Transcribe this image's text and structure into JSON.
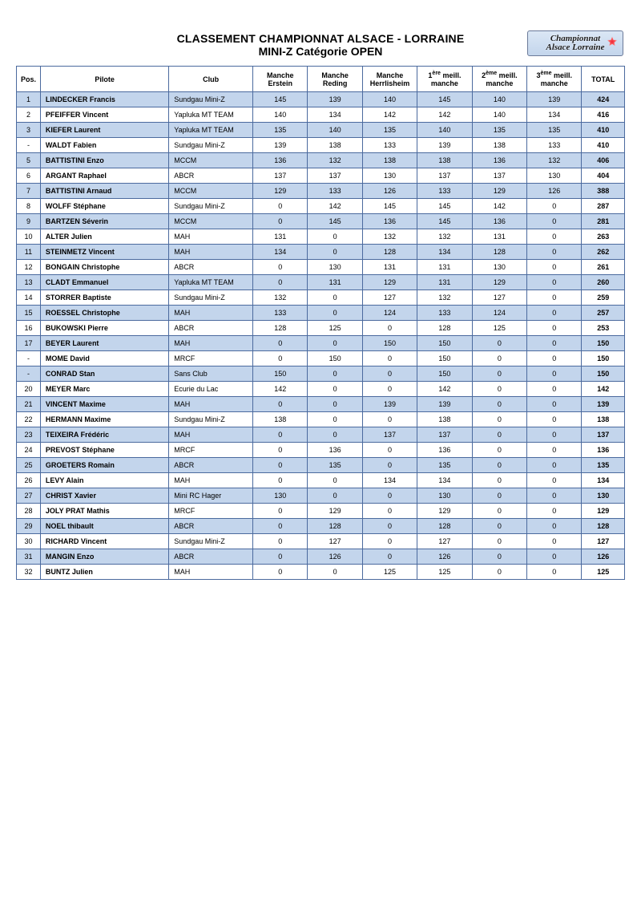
{
  "header": {
    "title_line1": "CLASSEMENT CHAMPIONNAT ALSACE - LORRAINE",
    "title_line2": "MINI-Z Catégorie OPEN",
    "logo_line1": "Championnat",
    "logo_line2": "Alsace Lorraine"
  },
  "style": {
    "border_color": "#4b6a9e",
    "row_odd_bg": "#c3d5ec",
    "row_even_bg": "#ffffff",
    "header_bg": "#ffffff",
    "font_family": "Arial",
    "base_font_size_pt": 7,
    "title_font_size_pt": 11,
    "logo_bg_gradient": [
      "#dbe7f5",
      "#c3d5ec"
    ]
  },
  "columns": [
    {
      "key": "pos",
      "label": "Pos.",
      "label_html": "Pos."
    },
    {
      "key": "pilote",
      "label": "Pilote",
      "label_html": "Pilote"
    },
    {
      "key": "club",
      "label": "Club",
      "label_html": "Club"
    },
    {
      "key": "m_erstein",
      "label": "Manche Erstein",
      "label_html": "Manche<br>Erstein"
    },
    {
      "key": "m_reding",
      "label": "Manche Reding",
      "label_html": "Manche<br>Reding"
    },
    {
      "key": "m_herrlisheim",
      "label": "Manche Herrlisheim",
      "label_html": "Manche<br>Herrlisheim"
    },
    {
      "key": "meil1",
      "label": "1ère meill. manche",
      "label_html": "1<sup>ère</sup> meill.<br>manche"
    },
    {
      "key": "meil2",
      "label": "2ème meill. manche",
      "label_html": "2<sup>ème</sup> meill.<br>manche"
    },
    {
      "key": "meil3",
      "label": "3ème meill. manche",
      "label_html": "3<sup>ème</sup> meill.<br>manche"
    },
    {
      "key": "total",
      "label": "TOTAL",
      "label_html": "TOTAL"
    }
  ],
  "rows": [
    {
      "pos": "1",
      "pilote": "LINDECKER Francis",
      "club": "Sundgau Mini-Z",
      "m_erstein": "145",
      "m_reding": "139",
      "m_herrlisheim": "140",
      "meil1": "145",
      "meil2": "140",
      "meil3": "139",
      "total": "424"
    },
    {
      "pos": "2",
      "pilote": "PFEIFFER Vincent",
      "club": "Yapluka MT TEAM",
      "m_erstein": "140",
      "m_reding": "134",
      "m_herrlisheim": "142",
      "meil1": "142",
      "meil2": "140",
      "meil3": "134",
      "total": "416"
    },
    {
      "pos": "3",
      "pilote": "KIEFER Laurent",
      "club": "Yapluka MT TEAM",
      "m_erstein": "135",
      "m_reding": "140",
      "m_herrlisheim": "135",
      "meil1": "140",
      "meil2": "135",
      "meil3": "135",
      "total": "410"
    },
    {
      "pos": "-",
      "pilote": "WALDT Fabien",
      "club": "Sundgau Mini-Z",
      "m_erstein": "139",
      "m_reding": "138",
      "m_herrlisheim": "133",
      "meil1": "139",
      "meil2": "138",
      "meil3": "133",
      "total": "410"
    },
    {
      "pos": "5",
      "pilote": "BATTISTINI Enzo",
      "club": "MCCM",
      "m_erstein": "136",
      "m_reding": "132",
      "m_herrlisheim": "138",
      "meil1": "138",
      "meil2": "136",
      "meil3": "132",
      "total": "406"
    },
    {
      "pos": "6",
      "pilote": "ARGANT Raphael",
      "club": "ABCR",
      "m_erstein": "137",
      "m_reding": "137",
      "m_herrlisheim": "130",
      "meil1": "137",
      "meil2": "137",
      "meil3": "130",
      "total": "404"
    },
    {
      "pos": "7",
      "pilote": "BATTISTINI Arnaud",
      "club": "MCCM",
      "m_erstein": "129",
      "m_reding": "133",
      "m_herrlisheim": "126",
      "meil1": "133",
      "meil2": "129",
      "meil3": "126",
      "total": "388"
    },
    {
      "pos": "8",
      "pilote": "WOLFF Stéphane",
      "club": "Sundgau Mini-Z",
      "m_erstein": "0",
      "m_reding": "142",
      "m_herrlisheim": "145",
      "meil1": "145",
      "meil2": "142",
      "meil3": "0",
      "total": "287"
    },
    {
      "pos": "9",
      "pilote": "BARTZEN Séverin",
      "club": "MCCM",
      "m_erstein": "0",
      "m_reding": "145",
      "m_herrlisheim": "136",
      "meil1": "145",
      "meil2": "136",
      "meil3": "0",
      "total": "281"
    },
    {
      "pos": "10",
      "pilote": "ALTER Julien",
      "club": "MAH",
      "m_erstein": "131",
      "m_reding": "0",
      "m_herrlisheim": "132",
      "meil1": "132",
      "meil2": "131",
      "meil3": "0",
      "total": "263"
    },
    {
      "pos": "11",
      "pilote": "STEINMETZ Vincent",
      "club": "MAH",
      "m_erstein": "134",
      "m_reding": "0",
      "m_herrlisheim": "128",
      "meil1": "134",
      "meil2": "128",
      "meil3": "0",
      "total": "262"
    },
    {
      "pos": "12",
      "pilote": "BONGAIN Christophe",
      "club": "ABCR",
      "m_erstein": "0",
      "m_reding": "130",
      "m_herrlisheim": "131",
      "meil1": "131",
      "meil2": "130",
      "meil3": "0",
      "total": "261"
    },
    {
      "pos": "13",
      "pilote": "CLADT Emmanuel",
      "club": "Yapluka MT TEAM",
      "m_erstein": "0",
      "m_reding": "131",
      "m_herrlisheim": "129",
      "meil1": "131",
      "meil2": "129",
      "meil3": "0",
      "total": "260"
    },
    {
      "pos": "14",
      "pilote": "STORRER Baptiste",
      "club": "Sundgau Mini-Z",
      "m_erstein": "132",
      "m_reding": "0",
      "m_herrlisheim": "127",
      "meil1": "132",
      "meil2": "127",
      "meil3": "0",
      "total": "259"
    },
    {
      "pos": "15",
      "pilote": "ROESSEL Christophe",
      "club": "MAH",
      "m_erstein": "133",
      "m_reding": "0",
      "m_herrlisheim": "124",
      "meil1": "133",
      "meil2": "124",
      "meil3": "0",
      "total": "257"
    },
    {
      "pos": "16",
      "pilote": "BUKOWSKI Pierre",
      "club": "ABCR",
      "m_erstein": "128",
      "m_reding": "125",
      "m_herrlisheim": "0",
      "meil1": "128",
      "meil2": "125",
      "meil3": "0",
      "total": "253"
    },
    {
      "pos": "17",
      "pilote": "BEYER Laurent",
      "club": "MAH",
      "m_erstein": "0",
      "m_reding": "0",
      "m_herrlisheim": "150",
      "meil1": "150",
      "meil2": "0",
      "meil3": "0",
      "total": "150"
    },
    {
      "pos": "-",
      "pilote": "MOME David",
      "club": "MRCF",
      "m_erstein": "0",
      "m_reding": "150",
      "m_herrlisheim": "0",
      "meil1": "150",
      "meil2": "0",
      "meil3": "0",
      "total": "150"
    },
    {
      "pos": "-",
      "pilote": "CONRAD Stan",
      "club": "Sans Club",
      "m_erstein": "150",
      "m_reding": "0",
      "m_herrlisheim": "0",
      "meil1": "150",
      "meil2": "0",
      "meil3": "0",
      "total": "150"
    },
    {
      "pos": "20",
      "pilote": "MEYER Marc",
      "club": "Ecurie du Lac",
      "m_erstein": "142",
      "m_reding": "0",
      "m_herrlisheim": "0",
      "meil1": "142",
      "meil2": "0",
      "meil3": "0",
      "total": "142"
    },
    {
      "pos": "21",
      "pilote": "VINCENT Maxime",
      "club": "MAH",
      "m_erstein": "0",
      "m_reding": "0",
      "m_herrlisheim": "139",
      "meil1": "139",
      "meil2": "0",
      "meil3": "0",
      "total": "139"
    },
    {
      "pos": "22",
      "pilote": "HERMANN Maxime",
      "club": "Sundgau Mini-Z",
      "m_erstein": "138",
      "m_reding": "0",
      "m_herrlisheim": "0",
      "meil1": "138",
      "meil2": "0",
      "meil3": "0",
      "total": "138"
    },
    {
      "pos": "23",
      "pilote": "TEIXEIRA Frédéric",
      "club": "MAH",
      "m_erstein": "0",
      "m_reding": "0",
      "m_herrlisheim": "137",
      "meil1": "137",
      "meil2": "0",
      "meil3": "0",
      "total": "137"
    },
    {
      "pos": "24",
      "pilote": "PREVOST Stéphane",
      "club": "MRCF",
      "m_erstein": "0",
      "m_reding": "136",
      "m_herrlisheim": "0",
      "meil1": "136",
      "meil2": "0",
      "meil3": "0",
      "total": "136"
    },
    {
      "pos": "25",
      "pilote": "GROETERS Romain",
      "club": "ABCR",
      "m_erstein": "0",
      "m_reding": "135",
      "m_herrlisheim": "0",
      "meil1": "135",
      "meil2": "0",
      "meil3": "0",
      "total": "135"
    },
    {
      "pos": "26",
      "pilote": "LEVY Alain",
      "club": "MAH",
      "m_erstein": "0",
      "m_reding": "0",
      "m_herrlisheim": "134",
      "meil1": "134",
      "meil2": "0",
      "meil3": "0",
      "total": "134"
    },
    {
      "pos": "27",
      "pilote": "CHRIST Xavier",
      "club": "Mini RC Hager",
      "m_erstein": "130",
      "m_reding": "0",
      "m_herrlisheim": "0",
      "meil1": "130",
      "meil2": "0",
      "meil3": "0",
      "total": "130"
    },
    {
      "pos": "28",
      "pilote": "JOLY PRAT Mathis",
      "club": "MRCF",
      "m_erstein": "0",
      "m_reding": "129",
      "m_herrlisheim": "0",
      "meil1": "129",
      "meil2": "0",
      "meil3": "0",
      "total": "129"
    },
    {
      "pos": "29",
      "pilote": "NOEL thibault",
      "club": "ABCR",
      "m_erstein": "0",
      "m_reding": "128",
      "m_herrlisheim": "0",
      "meil1": "128",
      "meil2": "0",
      "meil3": "0",
      "total": "128"
    },
    {
      "pos": "30",
      "pilote": "RICHARD Vincent",
      "club": "Sundgau Mini-Z",
      "m_erstein": "0",
      "m_reding": "127",
      "m_herrlisheim": "0",
      "meil1": "127",
      "meil2": "0",
      "meil3": "0",
      "total": "127"
    },
    {
      "pos": "31",
      "pilote": "MANGIN Enzo",
      "club": "ABCR",
      "m_erstein": "0",
      "m_reding": "126",
      "m_herrlisheim": "0",
      "meil1": "126",
      "meil2": "0",
      "meil3": "0",
      "total": "126"
    },
    {
      "pos": "32",
      "pilote": "BUNTZ Julien",
      "club": "MAH",
      "m_erstein": "0",
      "m_reding": "0",
      "m_herrlisheim": "125",
      "meil1": "125",
      "meil2": "0",
      "meil3": "0",
      "total": "125"
    }
  ]
}
